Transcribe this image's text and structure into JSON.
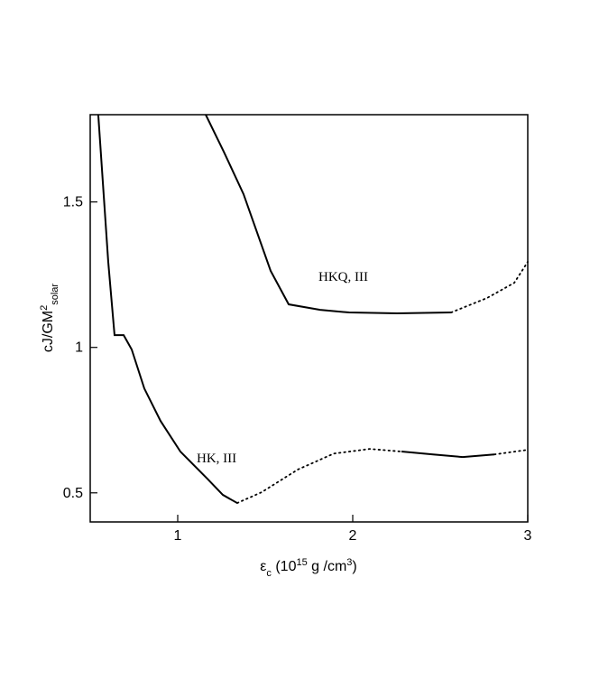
{
  "chart_data": {
    "type": "line",
    "xlabel": [
      {
        "text": "ε"
      },
      {
        "text": "c",
        "sub": true
      },
      {
        "text": " (10"
      },
      {
        "text": "15",
        "sup": true
      },
      {
        "text": " g /cm"
      },
      {
        "text": "3",
        "sup": true
      },
      {
        "text": ")"
      }
    ],
    "ylabel": [
      {
        "text": "cJ/GM"
      },
      {
        "text": "2",
        "sup": true
      },
      {
        "text": "solar",
        "sub": true
      }
    ],
    "xlim": [
      0.5,
      3
    ],
    "ylim": [
      0.4,
      1.8
    ],
    "xticks": [
      1,
      2,
      3
    ],
    "yticks": [
      0.5,
      1,
      1.5
    ],
    "color": "#000000",
    "series": [
      {
        "name": "HK, III",
        "segments": [
          {
            "style": "solid",
            "x": [
              0.546,
              0.603,
              0.639,
              0.691,
              0.737,
              0.809,
              0.902,
              1.015,
              1.17,
              1.258,
              1.34
            ],
            "values": [
              1.8,
              1.294,
              1.042,
              1.042,
              0.993,
              0.859,
              0.747,
              0.642,
              0.548,
              0.493,
              0.465
            ]
          },
          {
            "style": "dotted",
            "x": [
              1.34,
              1.479,
              1.686,
              1.892,
              2.098,
              2.278
            ],
            "values": [
              0.465,
              0.502,
              0.58,
              0.635,
              0.651,
              0.642
            ]
          },
          {
            "style": "solid",
            "x": [
              2.278,
              2.459,
              2.629,
              2.809
            ],
            "values": [
              0.642,
              0.632,
              0.623,
              0.632
            ]
          },
          {
            "style": "dotted",
            "x": [
              2.809,
              3
            ],
            "values": [
              0.632,
              0.648
            ]
          }
        ]
      },
      {
        "name": "HKQ, III",
        "segments": [
          {
            "style": "solid",
            "x": [
              1.16,
              1.263,
              1.376,
              1.531,
              1.634,
              1.814,
              1.979,
              2.253,
              2.562
            ],
            "values": [
              1.8,
              1.673,
              1.527,
              1.263,
              1.148,
              1.129,
              1.12,
              1.117,
              1.12
            ]
          },
          {
            "style": "dotted",
            "x": [
              2.562,
              2.768,
              2.923,
              3
            ],
            "values": [
              1.12,
              1.17,
              1.222,
              1.294
            ]
          }
        ]
      }
    ]
  }
}
